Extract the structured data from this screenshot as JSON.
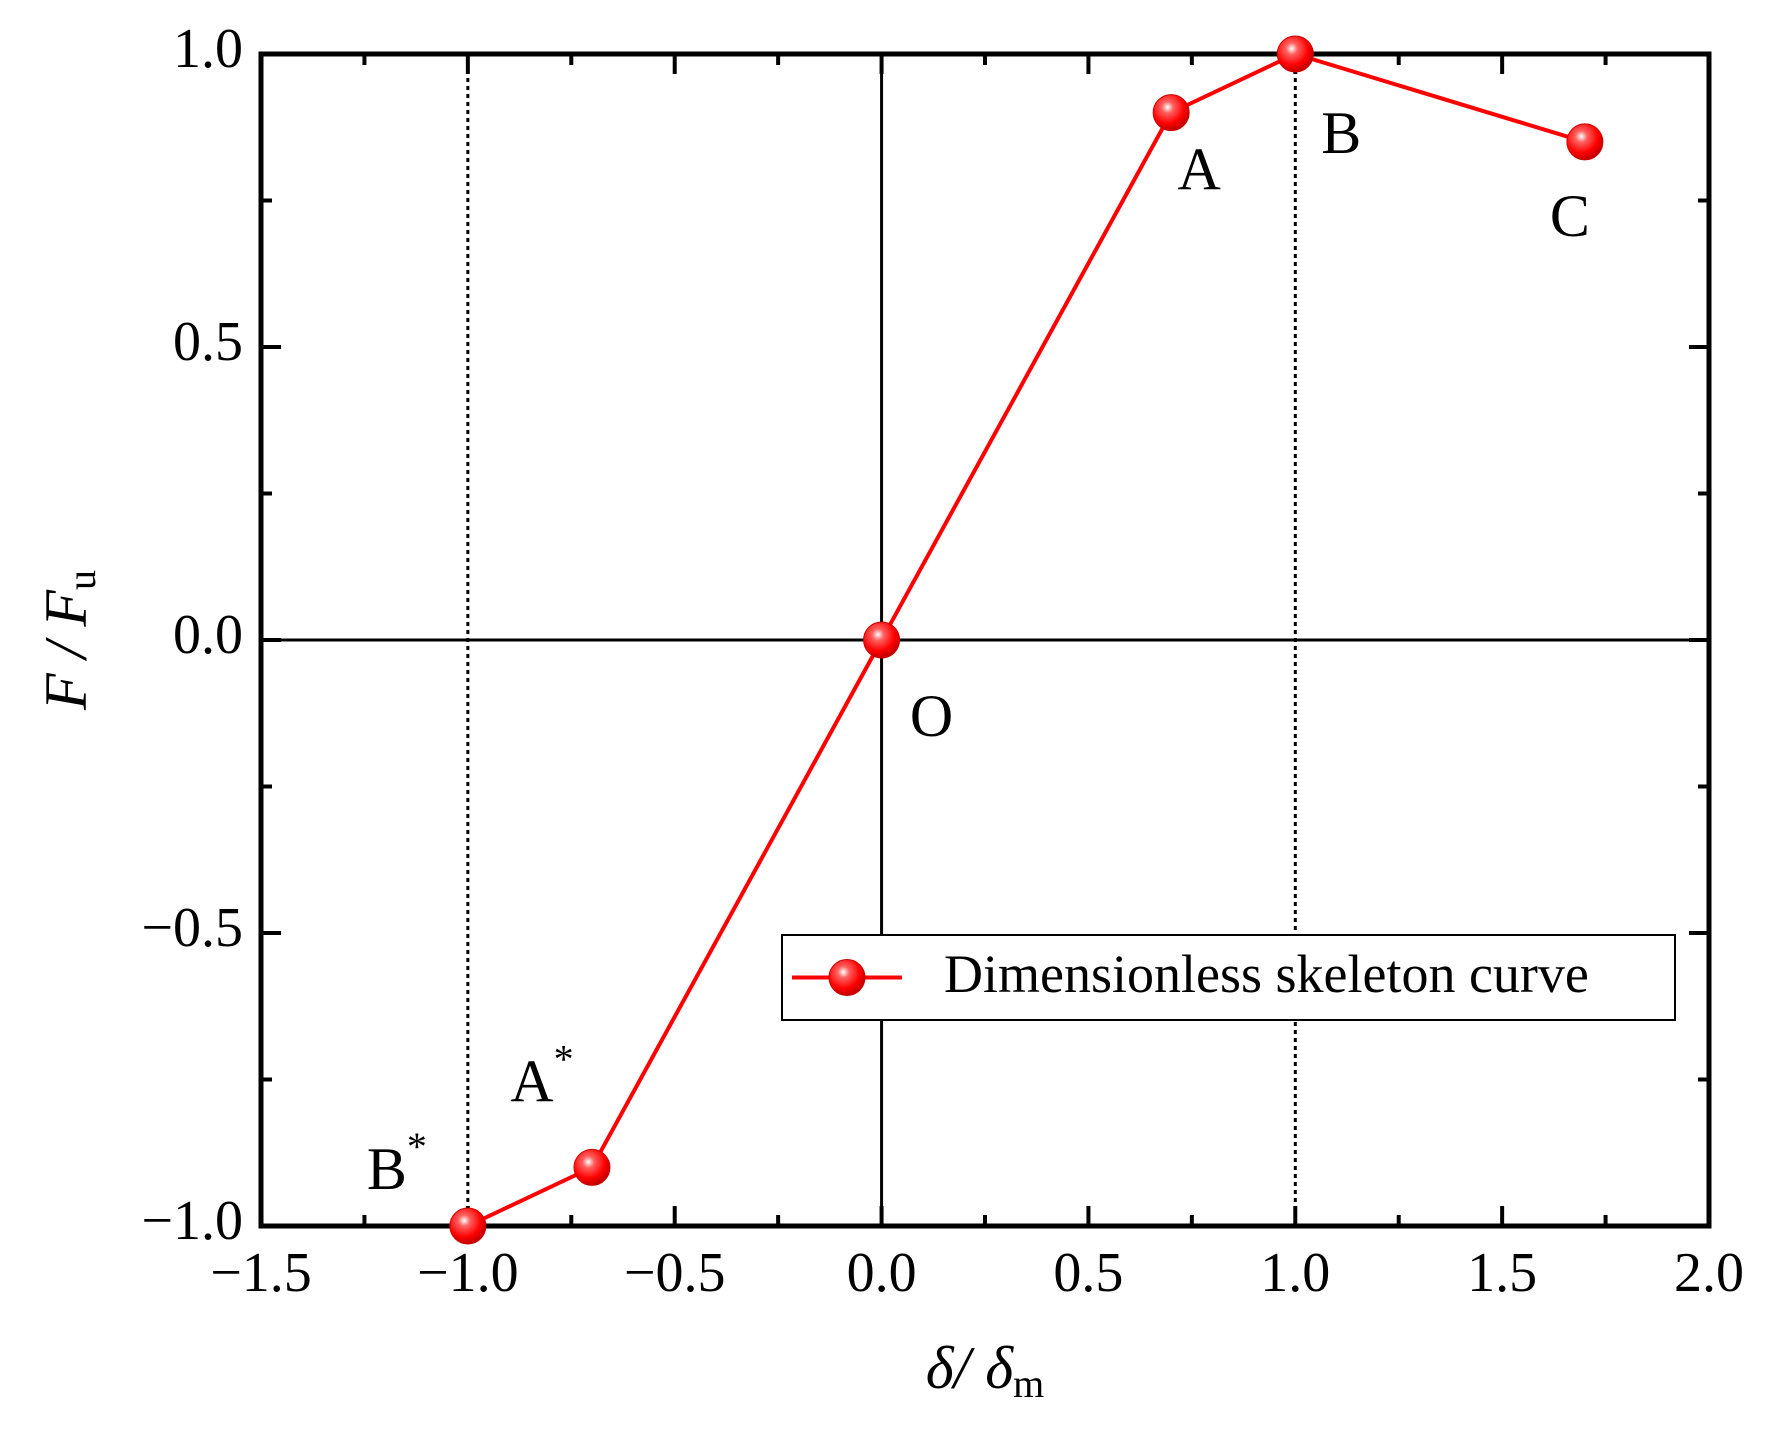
{
  "chart_data": {
    "type": "line",
    "xlabel": {
      "text": "δ/ δ",
      "sub": "m"
    },
    "ylabel": {
      "text": "F / F",
      "sub": "u"
    },
    "series": [
      {
        "name": "Dimensionless skeleton curve",
        "color": "#ff0000",
        "x": [
          -1,
          -0.7,
          0,
          0.7,
          1,
          1.7
        ],
        "values": [
          -1,
          -0.9,
          0,
          0.9,
          1,
          0.85
        ],
        "point_labels": [
          {
            "text": "B",
            "sup": "*"
          },
          {
            "text": "A",
            "sup": "*"
          },
          {
            "text": "O"
          },
          {
            "text": "A"
          },
          {
            "text": "B"
          },
          {
            "text": "C"
          }
        ]
      }
    ],
    "xlim": [
      -1.5,
      2
    ],
    "xticks": [
      {
        "value": -1.5,
        "label": "−1.5"
      },
      {
        "value": -1,
        "label": "−1.0"
      },
      {
        "value": -0.5,
        "label": "−0.5"
      },
      {
        "value": 0,
        "label": "0.0"
      },
      0.5,
      {
        "value": 1,
        "label": "1.0"
      },
      1.5,
      {
        "value": 2,
        "label": "2.0"
      }
    ],
    "xminorticks": [
      -1.25,
      -0.75,
      -0.25,
      0.25,
      0.75,
      1.25,
      1.75
    ],
    "ylim": [
      -1,
      1
    ],
    "yticks": [
      {
        "value": -1,
        "label": "−1.0"
      },
      {
        "value": -0.5,
        "label": "−0.5"
      },
      {
        "value": 0,
        "label": "0.0"
      },
      0.5,
      {
        "value": 1,
        "label": "1.0"
      }
    ],
    "yminorticks": [
      -0.75,
      -0.25,
      0.25,
      0.75
    ],
    "reference_vlines": [
      -1,
      1
    ],
    "zero_lines": true,
    "legend": "center right"
  }
}
